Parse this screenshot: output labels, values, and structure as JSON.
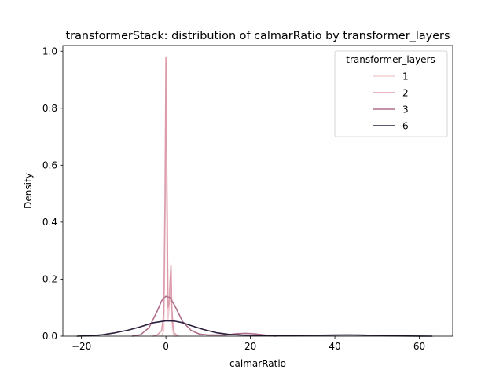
{
  "chart_data": {
    "type": "line",
    "title": "transformerStack: distribution of calmarRatio by transformer_layers",
    "xlabel": "calmarRatio",
    "ylabel": "Density",
    "xlim": [
      -24.4,
      67.9
    ],
    "ylim": [
      0.0,
      1.02
    ],
    "xticks": [
      -20,
      0,
      20,
      40,
      60
    ],
    "yticks": [
      0.0,
      0.2,
      0.4,
      0.6,
      0.8,
      1.0
    ],
    "xtick_labels": [
      "−20",
      "0",
      "20",
      "40",
      "60"
    ],
    "ytick_labels": [
      "0.0",
      "0.2",
      "0.4",
      "0.6",
      "0.8",
      "1.0"
    ],
    "grid": false,
    "legend": {
      "title": "transformer_layers",
      "placement": "top-right"
    },
    "series": [
      {
        "name": "1",
        "color": "#efcfd4",
        "x": [
          -1.0,
          -0.5,
          -0.3,
          -0.15,
          0.0,
          0.15,
          0.3,
          0.5,
          0.8,
          1.0,
          1.3,
          1.6,
          1.9,
          2.1,
          2.5
        ],
        "y": [
          0.0,
          0.02,
          0.25,
          0.5,
          0.64,
          0.5,
          0.22,
          0.06,
          0.1,
          0.2,
          0.08,
          0.02,
          0.0,
          0.0,
          0.0
        ]
      },
      {
        "name": "2",
        "color": "#dc9cab",
        "x": [
          -3.0,
          -2.0,
          -1.0,
          -0.5,
          -0.2,
          0.0,
          0.2,
          0.5,
          0.8,
          1.0,
          1.2,
          1.4,
          1.7,
          2.0,
          3.0
        ],
        "y": [
          0.0,
          0.005,
          0.02,
          0.08,
          0.5,
          0.98,
          0.6,
          0.1,
          0.12,
          0.2,
          0.25,
          0.1,
          0.03,
          0.01,
          0.0
        ]
      },
      {
        "name": "3",
        "color": "#b06e8b",
        "x": [
          -8,
          -6,
          -4,
          -2,
          -1,
          0,
          1,
          2,
          4,
          6,
          8,
          10,
          14,
          17,
          19,
          21,
          24,
          26
        ],
        "y": [
          0.0,
          0.005,
          0.03,
          0.09,
          0.125,
          0.14,
          0.135,
          0.11,
          0.05,
          0.02,
          0.007,
          0.004,
          0.004,
          0.009,
          0.01,
          0.008,
          0.003,
          0.0
        ]
      },
      {
        "name": "6",
        "color": "#2c1e3d",
        "x": [
          -21,
          -18,
          -15,
          -12,
          -9,
          -6,
          -3,
          0,
          2,
          4,
          6,
          9,
          12,
          15,
          18,
          21,
          25,
          30,
          35,
          40,
          43,
          46,
          50,
          55,
          60,
          63
        ],
        "y": [
          0.0,
          0.0015,
          0.005,
          0.012,
          0.021,
          0.033,
          0.047,
          0.054,
          0.053,
          0.047,
          0.037,
          0.023,
          0.012,
          0.006,
          0.004,
          0.003,
          0.002,
          0.002,
          0.003,
          0.004,
          0.0045,
          0.004,
          0.0025,
          0.001,
          0.0003,
          0.0
        ]
      }
    ]
  }
}
